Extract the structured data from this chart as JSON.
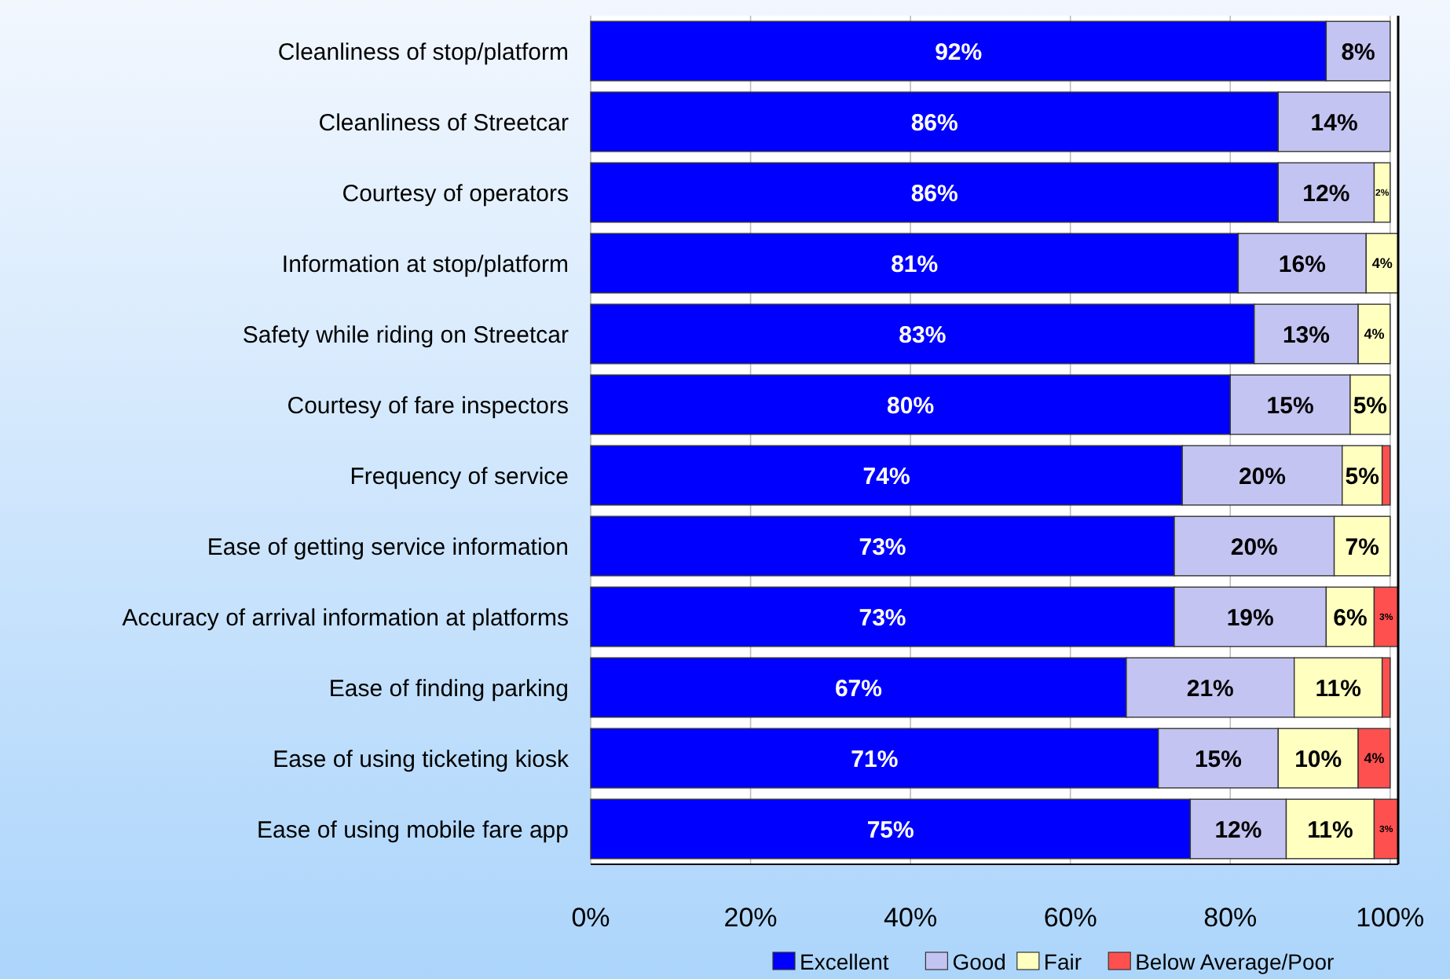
{
  "chart_data": {
    "type": "bar",
    "orientation": "horizontal",
    "stacked": true,
    "categories": [
      "Cleanliness of stop/platform",
      "Cleanliness of Streetcar",
      "Courtesy of operators",
      "Information at stop/platform",
      "Safety while riding on Streetcar",
      "Courtesy of fare inspectors",
      "Frequency of service",
      "Ease of getting service information",
      "Accuracy of arrival information at platforms",
      "Ease of finding parking",
      "Ease of using ticketing kiosk",
      "Ease of using mobile fare app"
    ],
    "series": [
      {
        "name": "Excellent",
        "color": "#0000ff",
        "values": [
          92,
          86,
          86,
          81,
          83,
          80,
          74,
          73,
          73,
          67,
          71,
          75
        ],
        "value_labels": [
          "92%",
          "86%",
          "86%",
          "81%",
          "83%",
          "80%",
          "74%",
          "73%",
          "73%",
          "67%",
          "71%",
          "75%"
        ]
      },
      {
        "name": "Good",
        "color": "#c4c4f2",
        "values": [
          8,
          14,
          12,
          16,
          13,
          15,
          20,
          20,
          19,
          21,
          15,
          12
        ],
        "value_labels": [
          "8%",
          "14%",
          "12%",
          "16%",
          "13%",
          "15%",
          "20%",
          "20%",
          "19%",
          "21%",
          "15%",
          "12%"
        ]
      },
      {
        "name": "Fair",
        "color": "#ffffc0",
        "values": [
          null,
          null,
          2,
          4,
          4,
          5,
          5,
          7,
          6,
          11,
          10,
          11
        ],
        "value_labels": [
          null,
          null,
          "2%",
          "4%",
          "4%",
          "5%",
          "5%",
          "7%",
          "6%",
          "11%",
          "10%",
          "11%"
        ]
      },
      {
        "name": "Below Average/Poor",
        "color": "#ff5050",
        "values": [
          null,
          null,
          null,
          null,
          null,
          null,
          1,
          null,
          3,
          1,
          4,
          3
        ],
        "value_labels": [
          null,
          null,
          null,
          null,
          null,
          null,
          null,
          null,
          "3%",
          null,
          "4%",
          "3%"
        ]
      }
    ],
    "xlim": [
      0,
      101
    ],
    "xticks": [
      {
        "value": 0,
        "label": "0%"
      },
      {
        "value": 20,
        "label": "20%"
      },
      {
        "value": 40,
        "label": "40%"
      },
      {
        "value": 60,
        "label": "60%"
      },
      {
        "value": 80,
        "label": "80%"
      },
      {
        "value": 100,
        "label": "100%"
      }
    ],
    "grid": "x",
    "legend": "bottom"
  }
}
